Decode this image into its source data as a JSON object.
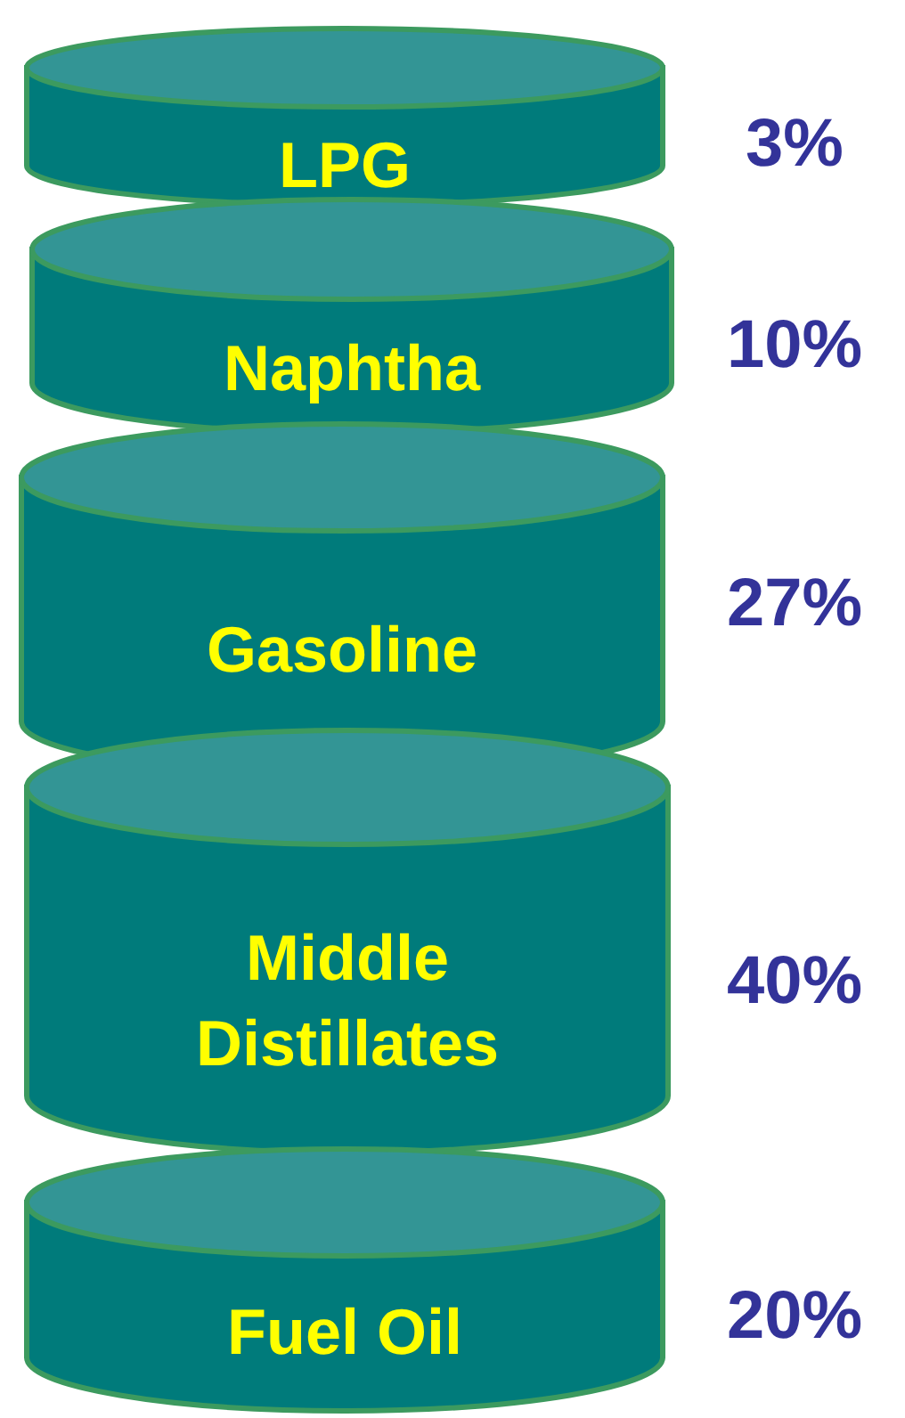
{
  "chart_data": {
    "type": "other",
    "categories": [
      "LPG",
      "Naphtha",
      "Gasoline",
      "Middle Distillates",
      "Fuel Oil"
    ],
    "values": [
      3,
      10,
      27,
      40,
      20
    ],
    "colors": [
      "#007b7b",
      "#007b7b",
      "#007b7b",
      "#007b7b",
      "#007b7b"
    ],
    "value_labels": [
      "3%",
      "10%",
      "27%",
      "40%",
      "20%"
    ]
  }
}
